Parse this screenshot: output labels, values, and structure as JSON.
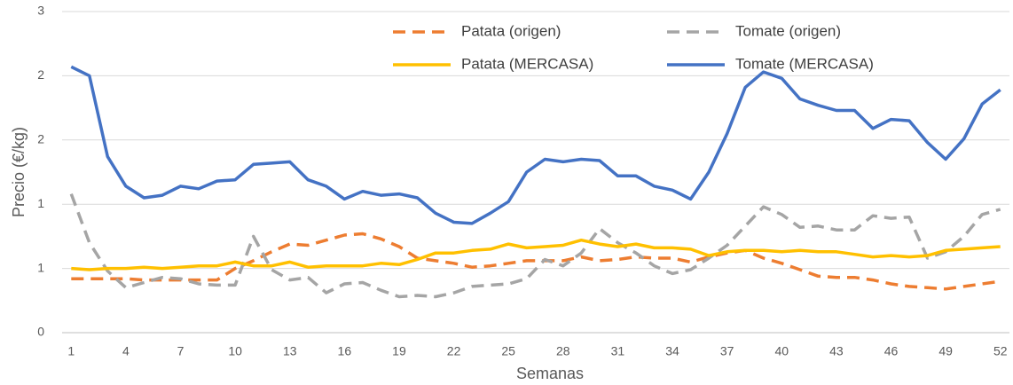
{
  "chart_data": {
    "type": "line",
    "x_label": "Semanas",
    "y_label": "Precio (€/kg)",
    "categories": [
      1,
      null,
      null,
      4,
      null,
      null,
      7,
      null,
      null,
      10,
      null,
      null,
      13,
      null,
      null,
      16,
      null,
      null,
      19,
      null,
      null,
      22,
      null,
      null,
      25,
      null,
      null,
      28,
      null,
      null,
      31,
      null,
      null,
      34,
      null,
      null,
      37,
      null,
      null,
      40,
      null,
      null,
      43,
      null,
      null,
      46,
      null,
      null,
      49,
      null,
      null,
      52
    ],
    "ylim": [
      0,
      2.5
    ],
    "yticks": [
      0,
      {
        "value": 0.5,
        "label": "1"
      },
      1,
      {
        "value": 1.5,
        "label": "2"
      },
      2,
      {
        "value": 2.5,
        "label": "3"
      }
    ],
    "grid": true,
    "series": [
      {
        "name": "Patata (origen)",
        "color": "#ed7d31",
        "dashed": true,
        "values": [
          0.42,
          0.42,
          0.42,
          0.42,
          0.41,
          0.41,
          0.41,
          0.41,
          0.41,
          0.5,
          0.56,
          0.63,
          0.69,
          0.68,
          0.72,
          0.76,
          0.77,
          0.73,
          0.67,
          0.58,
          0.56,
          0.54,
          0.51,
          0.52,
          0.54,
          0.56,
          0.56,
          0.56,
          0.59,
          0.56,
          0.57,
          0.59,
          0.58,
          0.58,
          0.55,
          0.59,
          0.62,
          0.64,
          0.58,
          0.54,
          0.49,
          0.44,
          0.43,
          0.43,
          0.41,
          0.38,
          0.36,
          0.35,
          0.34,
          0.36,
          0.38,
          0.4
        ]
      },
      {
        "name": "Tomate (origen)",
        "color": "#a5a5a5",
        "dashed": true,
        "values": [
          1.08,
          0.7,
          0.48,
          0.35,
          0.39,
          0.43,
          0.42,
          0.38,
          0.37,
          0.37,
          0.75,
          0.49,
          0.41,
          0.43,
          0.31,
          0.38,
          0.39,
          0.33,
          0.28,
          0.29,
          0.28,
          0.31,
          0.36,
          0.37,
          0.38,
          0.42,
          0.57,
          0.52,
          0.62,
          0.81,
          0.7,
          0.62,
          0.52,
          0.46,
          0.49,
          0.58,
          0.68,
          0.83,
          0.98,
          0.92,
          0.82,
          0.83,
          0.8,
          0.8,
          0.91,
          0.89,
          0.9,
          0.58,
          0.63,
          0.75,
          0.92,
          0.96
        ]
      },
      {
        "name": "Patata (MERCASA)",
        "color": "#ffc000",
        "dashed": false,
        "values": [
          0.5,
          0.49,
          0.5,
          0.5,
          0.51,
          0.5,
          0.51,
          0.52,
          0.52,
          0.55,
          0.52,
          0.52,
          0.55,
          0.51,
          0.52,
          0.52,
          0.52,
          0.54,
          0.53,
          0.57,
          0.62,
          0.62,
          0.64,
          0.65,
          0.69,
          0.66,
          0.67,
          0.68,
          0.72,
          0.69,
          0.67,
          0.69,
          0.66,
          0.66,
          0.65,
          0.6,
          0.63,
          0.64,
          0.64,
          0.63,
          0.64,
          0.63,
          0.63,
          0.61,
          0.59,
          0.6,
          0.59,
          0.6,
          0.64,
          0.65,
          0.66,
          0.67
        ]
      },
      {
        "name": "Tomate (MERCASA)",
        "color": "#4472c4",
        "dashed": false,
        "values": [
          2.07,
          2.0,
          1.37,
          1.14,
          1.05,
          1.07,
          1.14,
          1.12,
          1.18,
          1.19,
          1.31,
          1.32,
          1.33,
          1.19,
          1.14,
          1.04,
          1.1,
          1.07,
          1.08,
          1.05,
          0.93,
          0.86,
          0.85,
          0.93,
          1.02,
          1.25,
          1.35,
          1.33,
          1.35,
          1.34,
          1.22,
          1.22,
          1.14,
          1.11,
          1.04,
          1.25,
          1.55,
          1.91,
          2.03,
          1.98,
          1.82,
          1.77,
          1.73,
          1.73,
          1.59,
          1.66,
          1.65,
          1.48,
          1.35,
          1.51,
          1.78,
          1.89
        ]
      }
    ]
  }
}
